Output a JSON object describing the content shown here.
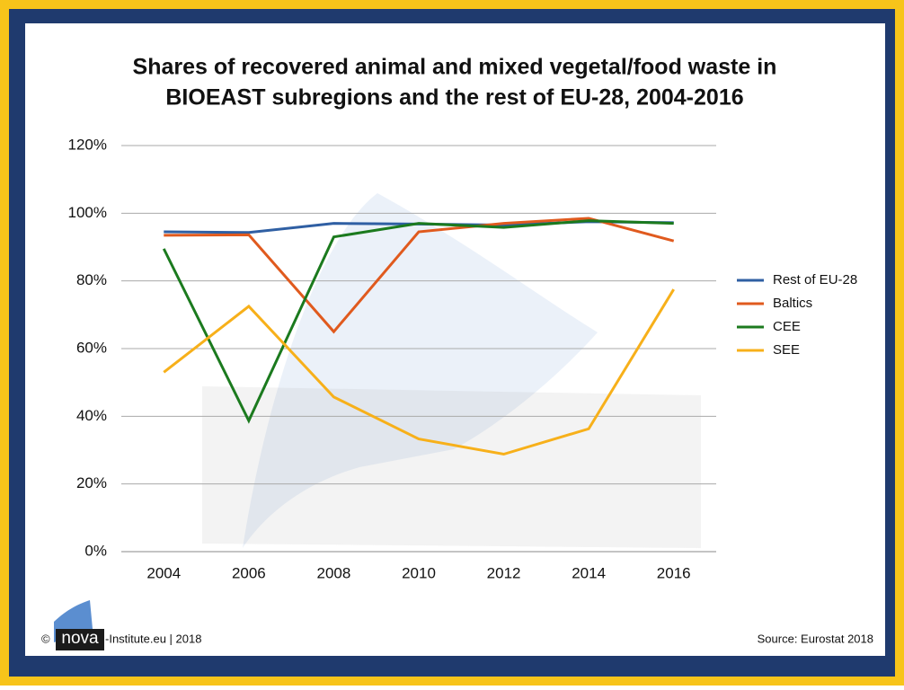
{
  "chart_data": {
    "type": "line",
    "title": "Shares of recovered animal and mixed vegetal/food waste in",
    "subtitle": "BIOEAST subregions and the rest of EU-28, 2004-2016",
    "categories": [
      "2004",
      "2006",
      "2008",
      "2010",
      "2012",
      "2014",
      "2016"
    ],
    "series": [
      {
        "name": "Rest of EU-28",
        "color": "#2f5fa3",
        "values": [
          94.5,
          94.3,
          97,
          96.8,
          96.5,
          97.5,
          97.2
        ]
      },
      {
        "name": "Baltics",
        "color": "#e05a1e",
        "values": [
          93.5,
          93.6,
          65,
          94.5,
          97,
          98.5,
          91.8
        ]
      },
      {
        "name": "CEE",
        "color": "#1b7a1e",
        "values": [
          89.5,
          38.7,
          93,
          97,
          95.8,
          97.8,
          97
        ]
      },
      {
        "name": "SEE",
        "color": "#f7b01a",
        "values": [
          53,
          72.5,
          45.7,
          33.3,
          28.8,
          36.3,
          77.5
        ]
      }
    ],
    "ylim": [
      0,
      120
    ],
    "yticks": [
      {
        "value": 0,
        "label": "0%"
      },
      {
        "value": 20,
        "label": "20%"
      },
      {
        "value": 40,
        "label": "40%"
      },
      {
        "value": 60,
        "label": "60%"
      },
      {
        "value": 80,
        "label": "80%"
      },
      {
        "value": 100,
        "label": "100%"
      },
      {
        "value": 120,
        "label": "120%"
      }
    ],
    "grid": true,
    "legend": "right",
    "footer": {
      "copyright": "©",
      "logo": "nova",
      "institute": "-Institute.eu | 2018",
      "source": "Source: Eurostat 2018"
    }
  }
}
